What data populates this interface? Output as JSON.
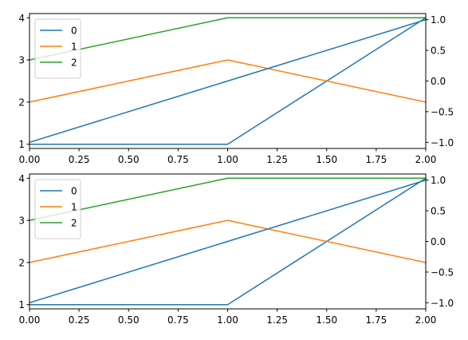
{
  "chart_data": [
    {
      "type": "line",
      "grid": false,
      "legend_position": "upper-left",
      "x": [
        0,
        1,
        2
      ],
      "x_ticks": [
        "0.00",
        "0.25",
        "0.50",
        "0.75",
        "1.00",
        "1.25",
        "1.50",
        "1.75",
        "2.00"
      ],
      "xlim": [
        0,
        2
      ],
      "y_left_ticks": [
        "1",
        "2",
        "3",
        "4"
      ],
      "ylim_left": [
        0.9,
        4.1
      ],
      "y_right_ticks": [
        "−1.0",
        "−0.5",
        "0.0",
        "0.5",
        "1.0"
      ],
      "ylim_right": [
        -1.1,
        1.1
      ],
      "series": [
        {
          "name": "0",
          "axis": "left",
          "color": "#1f77b4",
          "values": [
            1,
            1,
            4
          ]
        },
        {
          "name": "1",
          "axis": "left",
          "color": "#ff7f0e",
          "values": [
            2,
            3,
            2
          ]
        },
        {
          "name": "2",
          "axis": "left",
          "color": "#2ca02c",
          "values": [
            3,
            4,
            4
          ]
        },
        {
          "name": "",
          "axis": "right",
          "color": "#1f77b4",
          "values": [
            -1,
            0,
            1
          ]
        }
      ]
    },
    {
      "type": "line",
      "grid": false,
      "legend_position": "upper-left",
      "x": [
        0,
        1,
        2
      ],
      "x_ticks": [
        "0.00",
        "0.25",
        "0.50",
        "0.75",
        "1.00",
        "1.25",
        "1.50",
        "1.75",
        "2.00"
      ],
      "xlim": [
        0,
        2
      ],
      "y_left_ticks": [
        "1",
        "2",
        "3",
        "4"
      ],
      "ylim_left": [
        0.9,
        4.1
      ],
      "y_right_ticks": [
        "−1.0",
        "−0.5",
        "0.0",
        "0.5",
        "1.0"
      ],
      "ylim_right": [
        -1.1,
        1.1
      ],
      "series": [
        {
          "name": "0",
          "axis": "left",
          "color": "#1f77b4",
          "values": [
            1,
            1,
            4
          ]
        },
        {
          "name": "1",
          "axis": "left",
          "color": "#ff7f0e",
          "values": [
            2,
            3,
            2
          ]
        },
        {
          "name": "2",
          "axis": "left",
          "color": "#2ca02c",
          "values": [
            3,
            4,
            4
          ]
        },
        {
          "name": "",
          "axis": "right",
          "color": "#1f77b4",
          "values": [
            -1,
            0,
            1
          ]
        }
      ]
    }
  ]
}
